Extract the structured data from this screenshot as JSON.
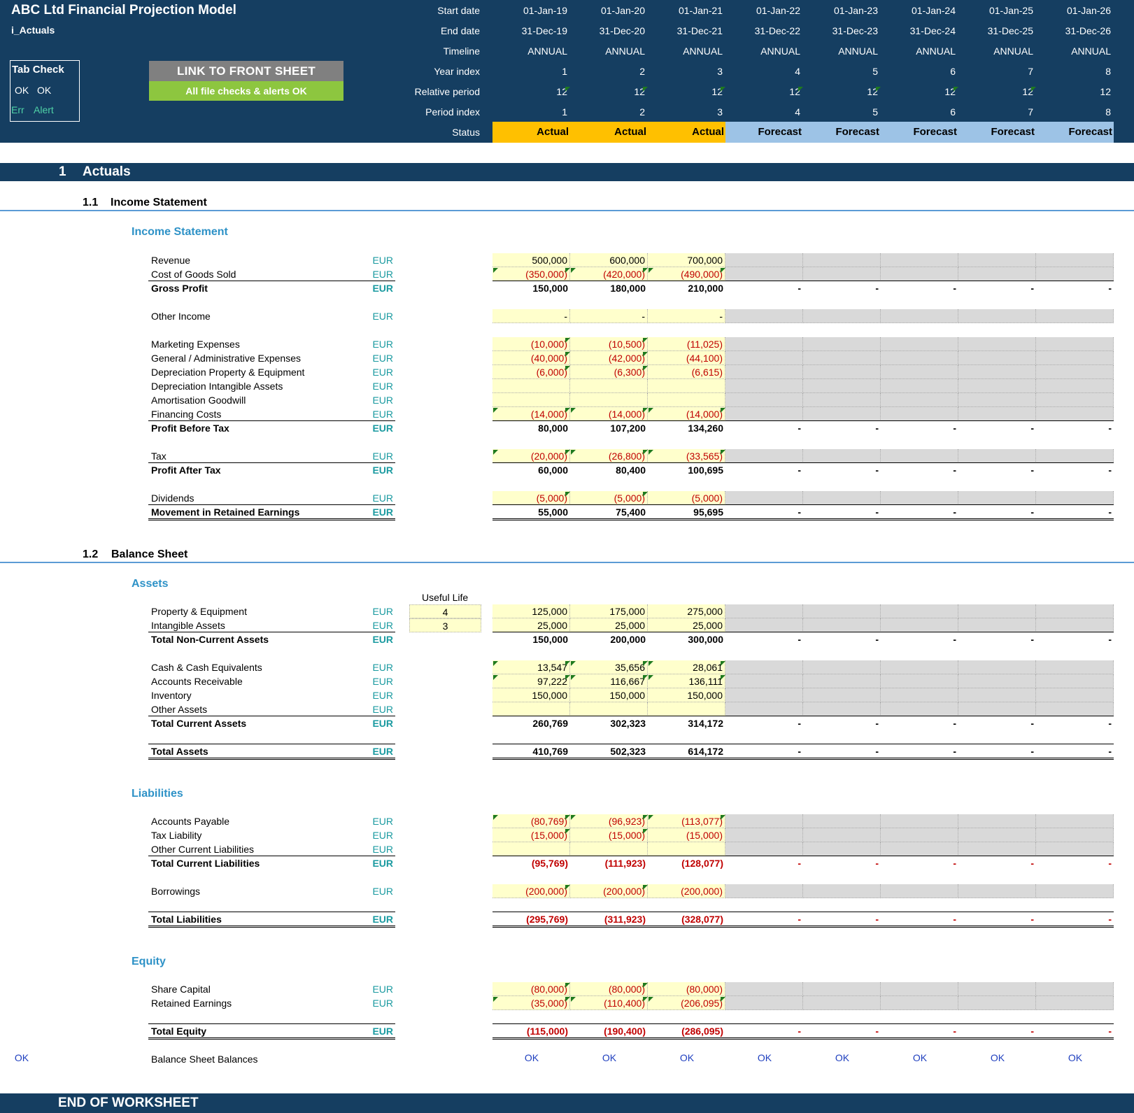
{
  "header": {
    "title": "ABC Ltd Financial Projection Model",
    "sheet": "i_Actuals",
    "tab_check": {
      "title": "Tab Check",
      "ok1": "OK",
      "ok2": "OK",
      "err": "Err",
      "alert": "Alert"
    },
    "link_button": "LINK TO FRONT SHEET",
    "checks_button": "All file checks & alerts OK",
    "row_labels": [
      "Start date",
      "End date",
      "Timeline",
      "Year index",
      "Relative period",
      "Period index",
      "Status"
    ],
    "periods": [
      {
        "start": "01-Jan-19",
        "end": "31-Dec-19",
        "timeline": "ANNUAL",
        "year": "1",
        "rel": "12",
        "idx": "1",
        "status": "Actual"
      },
      {
        "start": "01-Jan-20",
        "end": "31-Dec-20",
        "timeline": "ANNUAL",
        "year": "2",
        "rel": "12",
        "idx": "2",
        "status": "Actual"
      },
      {
        "start": "01-Jan-21",
        "end": "31-Dec-21",
        "timeline": "ANNUAL",
        "year": "3",
        "rel": "12",
        "idx": "3",
        "status": "Actual"
      },
      {
        "start": "01-Jan-22",
        "end": "31-Dec-22",
        "timeline": "ANNUAL",
        "year": "4",
        "rel": "12",
        "idx": "4",
        "status": "Forecast"
      },
      {
        "start": "01-Jan-23",
        "end": "31-Dec-23",
        "timeline": "ANNUAL",
        "year": "5",
        "rel": "12",
        "idx": "5",
        "status": "Forecast"
      },
      {
        "start": "01-Jan-24",
        "end": "31-Dec-24",
        "timeline": "ANNUAL",
        "year": "6",
        "rel": "12",
        "idx": "6",
        "status": "Forecast"
      },
      {
        "start": "01-Jan-25",
        "end": "31-Dec-25",
        "timeline": "ANNUAL",
        "year": "7",
        "rel": "12",
        "idx": "7",
        "status": "Forecast"
      },
      {
        "start": "01-Jan-26",
        "end": "31-Dec-26",
        "timeline": "ANNUAL",
        "year": "8",
        "rel": "12",
        "idx": "8",
        "status": "Forecast"
      }
    ]
  },
  "section": {
    "number": "1",
    "title": "Actuals"
  },
  "income": {
    "sub_number": "1.1",
    "sub_title": "Income Statement",
    "group_title": "Income Statement",
    "rows": [
      {
        "label": "Revenue",
        "unit": "EUR",
        "values": [
          "500,000",
          "600,000",
          "700,000"
        ],
        "kind": "input"
      },
      {
        "label": "Cost of Goods Sold",
        "unit": "EUR",
        "values": [
          "(350,000)",
          "(420,000)",
          "(490,000)"
        ],
        "kind": "input",
        "neg": true,
        "tri": true
      },
      {
        "label": "Gross Profit",
        "unit": "EUR",
        "values": [
          "150,000",
          "180,000",
          "210,000",
          "-",
          "-",
          "-",
          "-",
          "-"
        ],
        "kind": "total"
      },
      {
        "label": "Other Income",
        "unit": "EUR",
        "values": [
          "-",
          "-",
          "-"
        ],
        "kind": "input"
      },
      {
        "label": "Marketing Expenses",
        "unit": "EUR",
        "values": [
          "(10,000)",
          "(10,500)",
          "(11,025)"
        ],
        "kind": "input",
        "neg": true
      },
      {
        "label": "General / Administrative Expenses",
        "unit": "EUR",
        "values": [
          "(40,000)",
          "(42,000)",
          "(44,100)"
        ],
        "kind": "input",
        "neg": true
      },
      {
        "label": "Depreciation Property & Equipment",
        "unit": "EUR",
        "values": [
          "(6,000)",
          "(6,300)",
          "(6,615)"
        ],
        "kind": "input",
        "neg": true
      },
      {
        "label": "Depreciation Intangible Assets",
        "unit": "EUR",
        "values": [
          "",
          "",
          ""
        ],
        "kind": "input"
      },
      {
        "label": "Amortisation Goodwill",
        "unit": "EUR",
        "values": [
          "",
          "",
          ""
        ],
        "kind": "input"
      },
      {
        "label": "Financing Costs",
        "unit": "EUR",
        "values": [
          "(14,000)",
          "(14,000)",
          "(14,000)"
        ],
        "kind": "input",
        "neg": true,
        "tri": true
      },
      {
        "label": "Profit Before Tax",
        "unit": "EUR",
        "values": [
          "80,000",
          "107,200",
          "134,260",
          "-",
          "-",
          "-",
          "-",
          "-"
        ],
        "kind": "total"
      },
      {
        "label": "Tax",
        "unit": "EUR",
        "values": [
          "(20,000)",
          "(26,800)",
          "(33,565)"
        ],
        "kind": "input",
        "neg": true,
        "tri": true
      },
      {
        "label": "Profit After Tax",
        "unit": "EUR",
        "values": [
          "60,000",
          "80,400",
          "100,695",
          "-",
          "-",
          "-",
          "-",
          "-"
        ],
        "kind": "total"
      },
      {
        "label": "Dividends",
        "unit": "EUR",
        "values": [
          "(5,000)",
          "(5,000)",
          "(5,000)"
        ],
        "kind": "input",
        "neg": true
      },
      {
        "label": "Movement in Retained Earnings",
        "unit": "EUR",
        "values": [
          "55,000",
          "75,400",
          "95,695",
          "-",
          "-",
          "-",
          "-",
          "-"
        ],
        "kind": "total"
      }
    ]
  },
  "balance": {
    "sub_number": "1.2",
    "sub_title": "Balance Sheet",
    "assets_title": "Assets",
    "useful_life_label": "Useful Life",
    "useful_life": [
      "4",
      "3"
    ],
    "liabilities_title": "Liabilities",
    "equity_title": "Equity",
    "rows": [
      {
        "label": "Property & Equipment",
        "unit": "EUR",
        "values": [
          "125,000",
          "175,000",
          "275,000"
        ],
        "kind": "input"
      },
      {
        "label": "Intangible Assets",
        "unit": "EUR",
        "values": [
          "25,000",
          "25,000",
          "25,000"
        ],
        "kind": "input"
      },
      {
        "label": "Total Non-Current Assets",
        "unit": "EUR",
        "values": [
          "150,000",
          "200,000",
          "300,000",
          "-",
          "-",
          "-",
          "-",
          "-"
        ],
        "kind": "total"
      },
      {
        "label": "Cash & Cash Equivalents",
        "unit": "EUR",
        "values": [
          "13,547",
          "35,656",
          "28,061"
        ],
        "kind": "input",
        "tri": true
      },
      {
        "label": "Accounts Receivable",
        "unit": "EUR",
        "values": [
          "97,222",
          "116,667",
          "136,111"
        ],
        "kind": "input",
        "tri": true
      },
      {
        "label": "Inventory",
        "unit": "EUR",
        "values": [
          "150,000",
          "150,000",
          "150,000"
        ],
        "kind": "input"
      },
      {
        "label": "Other Assets",
        "unit": "EUR",
        "values": [
          "",
          "",
          ""
        ],
        "kind": "input"
      },
      {
        "label": "Total Current Assets",
        "unit": "EUR",
        "values": [
          "260,769",
          "302,323",
          "314,172",
          "-",
          "-",
          "-",
          "-",
          "-"
        ],
        "kind": "total"
      },
      {
        "label": "Total Assets",
        "unit": "EUR",
        "values": [
          "410,769",
          "502,323",
          "614,172",
          "-",
          "-",
          "-",
          "-",
          "-"
        ],
        "kind": "total"
      },
      {
        "label": "Accounts Payable",
        "unit": "EUR",
        "values": [
          "(80,769)",
          "(96,923)",
          "(113,077)"
        ],
        "kind": "input",
        "neg": true,
        "tri": true
      },
      {
        "label": "Tax Liability",
        "unit": "EUR",
        "values": [
          "(15,000)",
          "(15,000)",
          "(15,000)"
        ],
        "kind": "input",
        "neg": true
      },
      {
        "label": "Other Current Liabilities",
        "unit": "EUR",
        "values": [
          "",
          "",
          ""
        ],
        "kind": "input"
      },
      {
        "label": "Total Current Liabilities",
        "unit": "EUR",
        "values": [
          "(95,769)",
          "(111,923)",
          "(128,077)",
          "-",
          "-",
          "-",
          "-",
          "-"
        ],
        "kind": "total",
        "neg": true
      },
      {
        "label": "Borrowings",
        "unit": "EUR",
        "values": [
          "(200,000)",
          "(200,000)",
          "(200,000)"
        ],
        "kind": "input",
        "neg": true
      },
      {
        "label": "Total Liabilities",
        "unit": "EUR",
        "values": [
          "(295,769)",
          "(311,923)",
          "(328,077)",
          "-",
          "-",
          "-",
          "-",
          "-"
        ],
        "kind": "total",
        "neg": true
      },
      {
        "label": "Share Capital",
        "unit": "EUR",
        "values": [
          "(80,000)",
          "(80,000)",
          "(80,000)"
        ],
        "kind": "input",
        "neg": true
      },
      {
        "label": "Retained Earnings",
        "unit": "EUR",
        "values": [
          "(35,000)",
          "(110,400)",
          "(206,095)"
        ],
        "kind": "input",
        "neg": true,
        "tri": true
      },
      {
        "label": "Total Equity",
        "unit": "EUR",
        "values": [
          "(115,000)",
          "(190,400)",
          "(286,095)",
          "-",
          "-",
          "-",
          "-",
          "-"
        ],
        "kind": "total",
        "neg": true
      }
    ],
    "check_label": "Balance Sheet Balances",
    "check_flag": "OK",
    "checks": [
      "OK",
      "OK",
      "OK",
      "OK",
      "OK",
      "OK",
      "OK",
      "OK"
    ]
  },
  "footer": "END OF WORKSHEET"
}
